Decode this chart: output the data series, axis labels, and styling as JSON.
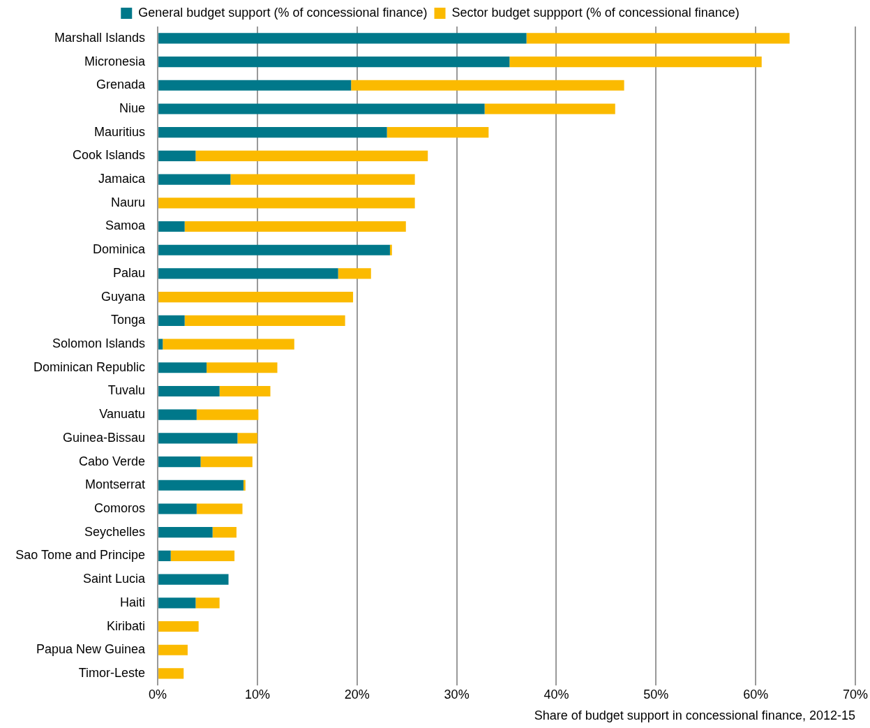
{
  "chart_data": {
    "type": "bar",
    "orientation": "horizontal",
    "stacked": true,
    "xlabel": "Share of budget support in concessional finance, 2012-15",
    "categories": [
      "Marshall Islands",
      "Micronesia",
      "Grenada",
      "Niue",
      "Mauritius",
      "Cook Islands",
      "Jamaica",
      "Nauru",
      "Samoa",
      "Dominica",
      "Palau",
      "Guyana",
      "Tonga",
      "Solomon Islands",
      "Dominican Republic",
      "Tuvalu",
      "Vanuatu",
      "Guinea-Bissau",
      "Cabo Verde",
      "Montserrat",
      "Comoros",
      "Seychelles",
      "Sao Tome and Principe",
      "Saint Lucia",
      "Haiti",
      "Kiribati",
      "Papua New Guinea",
      "Timor-Leste"
    ],
    "series": [
      {
        "name": "General budget support (% of concessional finance)",
        "color": "#00788a",
        "values": [
          37.0,
          35.3,
          19.4,
          32.8,
          23.0,
          3.8,
          7.3,
          0,
          2.7,
          23.3,
          18.1,
          0,
          2.7,
          0.5,
          4.9,
          6.2,
          3.9,
          8.0,
          4.3,
          8.6,
          3.9,
          5.5,
          1.3,
          7.1,
          3.8,
          0,
          0,
          0
        ]
      },
      {
        "name": "Sector budget suppport (% of concessional finance)",
        "color": "#fbba00",
        "values": [
          26.4,
          25.3,
          27.4,
          13.1,
          10.2,
          23.3,
          18.5,
          25.8,
          22.2,
          0.2,
          3.3,
          19.6,
          16.1,
          13.2,
          7.1,
          5.1,
          6.2,
          2.0,
          5.2,
          0.2,
          4.6,
          2.4,
          6.4,
          0,
          2.4,
          4.1,
          3.0,
          2.6
        ]
      }
    ],
    "xlim": [
      0,
      70
    ],
    "xticks": [
      {
        "value": 0,
        "label": "0%"
      },
      {
        "value": 10,
        "label": "10%"
      },
      {
        "value": 20,
        "label": "20%"
      },
      {
        "value": 30,
        "label": "30%"
      },
      {
        "value": 40,
        "label": "40%"
      },
      {
        "value": 50,
        "label": "50%"
      },
      {
        "value": 60,
        "label": "60%"
      },
      {
        "value": 70,
        "label": "70%"
      }
    ],
    "grid": "x",
    "legend": "top"
  }
}
